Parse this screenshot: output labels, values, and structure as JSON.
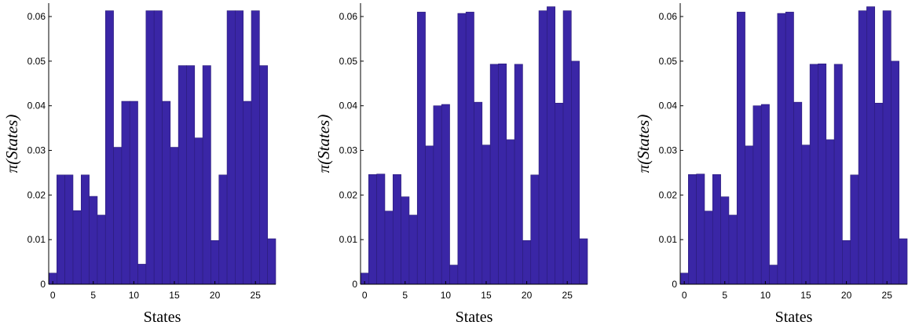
{
  "chart_data": [
    {
      "type": "bar",
      "xlabel": "States",
      "ylabel": "π(States)",
      "color": "#3a26a6",
      "xlim": [
        -0.5,
        27.5
      ],
      "ylim": [
        0,
        0.063
      ],
      "xticks": [
        "0",
        "5",
        "10",
        "15",
        "20",
        "25"
      ],
      "yticks": [
        "0",
        "0.01",
        "0.02",
        "0.03",
        "0.04",
        "0.05",
        "0.06"
      ],
      "categories": [
        0,
        1,
        2,
        3,
        4,
        5,
        6,
        7,
        8,
        9,
        10,
        11,
        12,
        13,
        14,
        15,
        16,
        17,
        18,
        19,
        20,
        21,
        22,
        23,
        24,
        25,
        26,
        27
      ],
      "values": [
        0.0025,
        0.0245,
        0.0245,
        0.0165,
        0.0245,
        0.0197,
        0.0155,
        0.0613,
        0.0307,
        0.041,
        0.041,
        0.0045,
        0.0613,
        0.0613,
        0.041,
        0.0307,
        0.049,
        0.049,
        0.0328,
        0.049,
        0.0098,
        0.0245,
        0.0613,
        0.0613,
        0.041,
        0.0613,
        0.049,
        0.0102
      ]
    },
    {
      "type": "bar",
      "xlabel": "States",
      "ylabel": "π(States)",
      "color": "#3a26a6",
      "xlim": [
        -0.5,
        27.5
      ],
      "ylim": [
        0,
        0.063
      ],
      "xticks": [
        "0",
        "5",
        "10",
        "15",
        "20",
        "25"
      ],
      "yticks": [
        "0",
        "0.01",
        "0.02",
        "0.03",
        "0.04",
        "0.05",
        "0.06"
      ],
      "categories": [
        0,
        1,
        2,
        3,
        4,
        5,
        6,
        7,
        8,
        9,
        10,
        11,
        12,
        13,
        14,
        15,
        16,
        17,
        18,
        19,
        20,
        21,
        22,
        23,
        24,
        25,
        26,
        27
      ],
      "values": [
        0.0025,
        0.0246,
        0.0247,
        0.0164,
        0.0246,
        0.0196,
        0.0155,
        0.061,
        0.031,
        0.04,
        0.0403,
        0.0043,
        0.0607,
        0.061,
        0.0408,
        0.0312,
        0.0493,
        0.0494,
        0.0324,
        0.0493,
        0.0098,
        0.0245,
        0.0613,
        0.0622,
        0.0406,
        0.0613,
        0.05,
        0.0102
      ]
    },
    {
      "type": "bar",
      "xlabel": "States",
      "ylabel": "π(States)",
      "color": "#3a26a6",
      "xlim": [
        -0.5,
        27.5
      ],
      "ylim": [
        0,
        0.063
      ],
      "xticks": [
        "0",
        "5",
        "10",
        "15",
        "20",
        "25"
      ],
      "yticks": [
        "0",
        "0.01",
        "0.02",
        "0.03",
        "0.04",
        "0.05",
        "0.06"
      ],
      "categories": [
        0,
        1,
        2,
        3,
        4,
        5,
        6,
        7,
        8,
        9,
        10,
        11,
        12,
        13,
        14,
        15,
        16,
        17,
        18,
        19,
        20,
        21,
        22,
        23,
        24,
        25,
        26,
        27
      ],
      "values": [
        0.0025,
        0.0246,
        0.0247,
        0.0164,
        0.0246,
        0.0196,
        0.0155,
        0.061,
        0.031,
        0.04,
        0.0403,
        0.0043,
        0.0607,
        0.061,
        0.0408,
        0.0312,
        0.0493,
        0.0494,
        0.0324,
        0.0493,
        0.0098,
        0.0245,
        0.0613,
        0.0622,
        0.0406,
        0.0613,
        0.05,
        0.0102
      ]
    }
  ]
}
